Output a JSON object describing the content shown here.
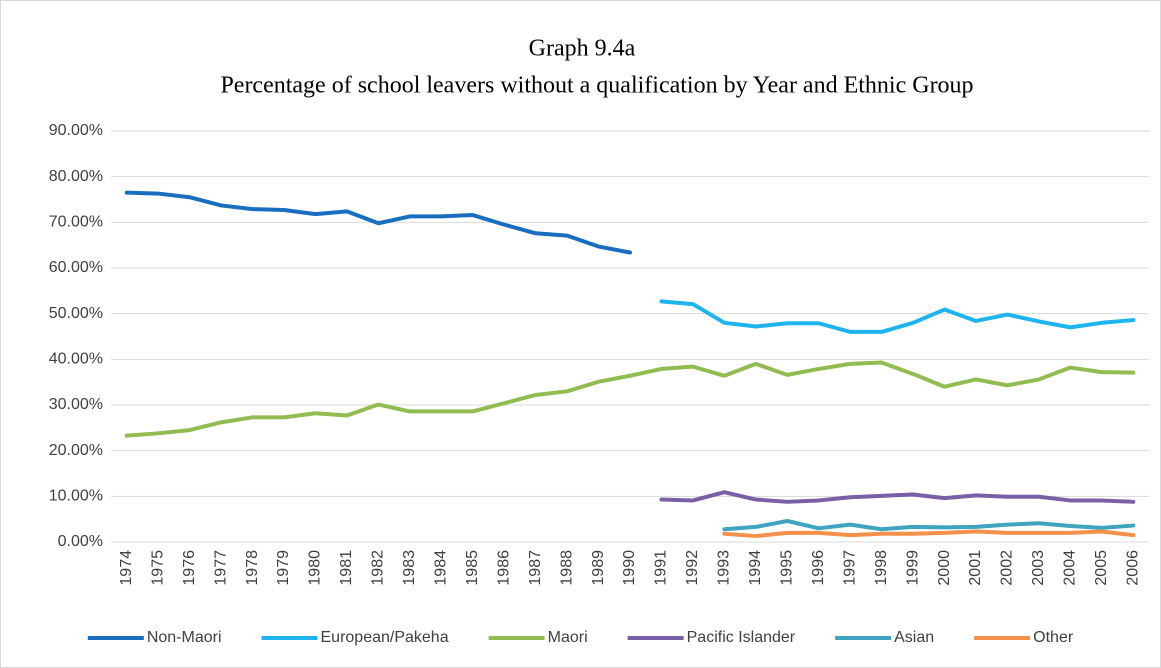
{
  "chart_data": {
    "type": "line",
    "title": "Graph 9.4a",
    "subtitle": "Percentage of school leavers without a qualification by Year and Ethnic Group",
    "categories": [
      "1974",
      "1975",
      "1976",
      "1977",
      "1978",
      "1979",
      "1980",
      "1981",
      "1982",
      "1983",
      "1984",
      "1985",
      "1986",
      "1987",
      "1988",
      "1989",
      "1990",
      "1991",
      "1992",
      "1993",
      "1994",
      "1995",
      "1996",
      "1997",
      "1998",
      "1999",
      "2000",
      "2001",
      "2002",
      "2003",
      "2004",
      "2005",
      "2006"
    ],
    "series": [
      {
        "name": "Non-Maori",
        "color": "#1a6ec0",
        "values": [
          76.5,
          76.3,
          75.5,
          73.7,
          72.9,
          72.7,
          71.8,
          72.4,
          69.8,
          71.3,
          71.3,
          71.6,
          69.5,
          67.6,
          67.1,
          64.7,
          63.4,
          null,
          null,
          null,
          null,
          null,
          null,
          null,
          null,
          null,
          null,
          null,
          null,
          null,
          null,
          null,
          null
        ]
      },
      {
        "name": "European/Pakeha",
        "color": "#1eb4f0",
        "values": [
          null,
          null,
          null,
          null,
          null,
          null,
          null,
          null,
          null,
          null,
          null,
          null,
          null,
          null,
          null,
          null,
          null,
          52.7,
          52.1,
          48.0,
          47.2,
          47.9,
          47.9,
          46.0,
          46.0,
          48.0,
          50.9,
          48.4,
          49.8,
          48.3,
          47.0,
          48.0,
          48.6
        ]
      },
      {
        "name": "Maori",
        "color": "#92bc52",
        "values": [
          23.3,
          23.8,
          24.5,
          26.2,
          27.3,
          27.3,
          28.2,
          27.7,
          30.1,
          28.6,
          28.6,
          28.6,
          30.4,
          32.2,
          33.0,
          35.1,
          36.4,
          37.9,
          38.4,
          36.4,
          39.0,
          36.6,
          37.9,
          39.0,
          39.3,
          36.8,
          34.0,
          35.6,
          34.3,
          35.6,
          38.2,
          37.2,
          37.1
        ]
      },
      {
        "name": "Pacific Islander",
        "color": "#7a5ea6",
        "values": [
          null,
          null,
          null,
          null,
          null,
          null,
          null,
          null,
          null,
          null,
          null,
          null,
          null,
          null,
          null,
          null,
          null,
          9.3,
          9.1,
          10.9,
          9.3,
          8.8,
          9.1,
          9.8,
          10.1,
          10.4,
          9.6,
          10.2,
          9.9,
          9.9,
          9.1,
          9.1,
          8.8
        ]
      },
      {
        "name": "Asian",
        "color": "#3fa4c0",
        "values": [
          null,
          null,
          null,
          null,
          null,
          null,
          null,
          null,
          null,
          null,
          null,
          null,
          null,
          null,
          null,
          null,
          null,
          null,
          null,
          2.8,
          3.3,
          4.6,
          3.0,
          3.8,
          2.8,
          3.3,
          3.2,
          3.3,
          3.8,
          4.1,
          3.5,
          3.1,
          3.6
        ]
      },
      {
        "name": "Other",
        "color": "#f5904a",
        "values": [
          null,
          null,
          null,
          null,
          null,
          null,
          null,
          null,
          null,
          null,
          null,
          null,
          null,
          null,
          null,
          null,
          null,
          null,
          null,
          1.8,
          1.3,
          2.0,
          2.0,
          1.5,
          1.8,
          1.8,
          2.0,
          2.3,
          2.0,
          2.0,
          2.0,
          2.3,
          1.5
        ]
      }
    ],
    "ylim": [
      0,
      90
    ],
    "yticks": [
      {
        "value": 0,
        "label": "0.00%"
      },
      {
        "value": 10,
        "label": "10.00%"
      },
      {
        "value": 20,
        "label": "20.00%"
      },
      {
        "value": 30,
        "label": "30.00%"
      },
      {
        "value": 40,
        "label": "40.00%"
      },
      {
        "value": 50,
        "label": "50.00%"
      },
      {
        "value": 60,
        "label": "60.00%"
      },
      {
        "value": 70,
        "label": "70.00%"
      },
      {
        "value": 80,
        "label": "80.00%"
      },
      {
        "value": 90,
        "label": "90.00%"
      }
    ],
    "grid": true,
    "legend": "bottom"
  }
}
